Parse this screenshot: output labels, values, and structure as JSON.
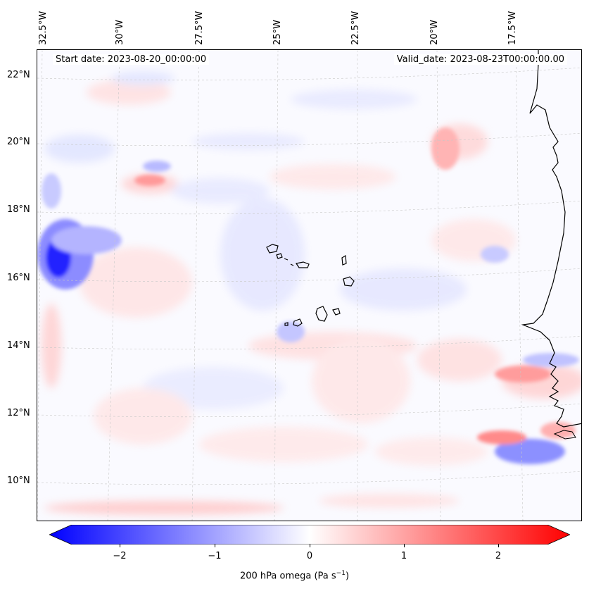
{
  "map": {
    "lon_labels": [
      "32.5°W",
      "30°W",
      "27.5°W",
      "25°W",
      "22.5°W",
      "20°W",
      "17.5°W"
    ],
    "lat_labels": [
      "22°N",
      "20°N",
      "18°N",
      "16°N",
      "14°N",
      "12°N",
      "10°N"
    ],
    "start_date": "Start date: 2023-08-20_00:00:00",
    "valid_date": "Valid_date: 2023-08-23T00:00:00.00",
    "gridlines": true
  },
  "colorbar": {
    "ticks": [
      "−2",
      "−1",
      "0",
      "1",
      "2"
    ],
    "tick_values": [
      -2,
      -1,
      0,
      1,
      2
    ],
    "range": [
      -2.75,
      2.75
    ],
    "label": "200 hPa omega (Pa s",
    "label_sup": "−1",
    "label_end": ")",
    "negative_color": "#0000ff",
    "positive_color": "#ff0000",
    "zero_color": "#ffffff",
    "extend": "both"
  }
}
